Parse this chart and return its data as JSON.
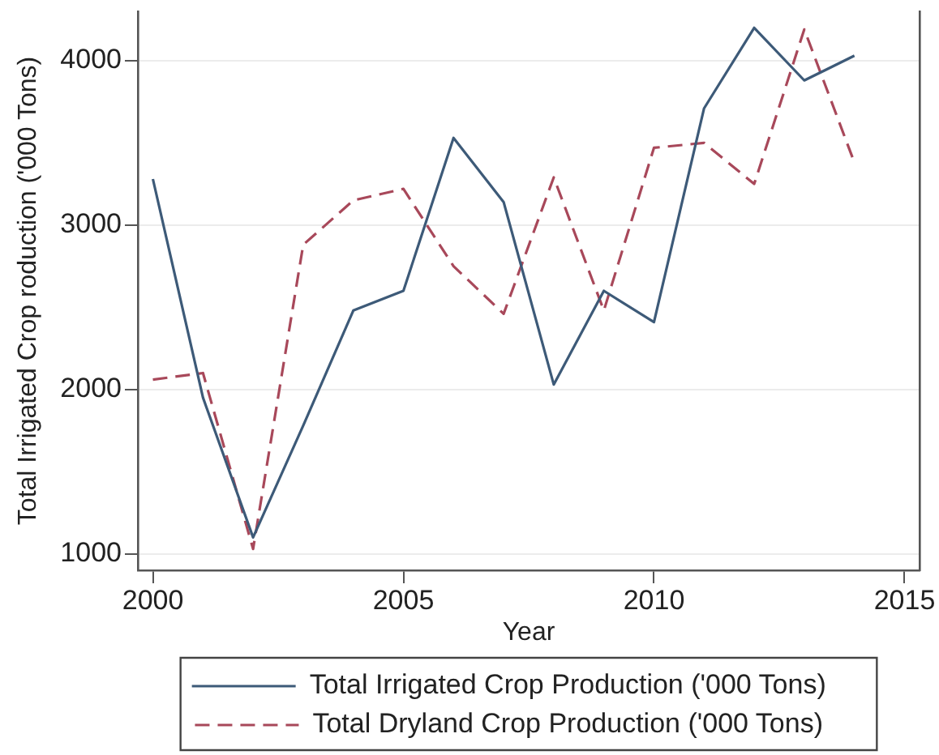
{
  "chart_data": {
    "type": "line",
    "xlabel": "Year",
    "ylabel": "Total Irrigated Crop roduction ('000 Tons)",
    "x": [
      2000,
      2001,
      2002,
      2003,
      2004,
      2005,
      2006,
      2007,
      2008,
      2009,
      2010,
      2011,
      2012,
      2013,
      2014
    ],
    "series": [
      {
        "name": "Total Irrigated Crop Production ('000 Tons)",
        "color": "#3d5a78",
        "line_style": "solid",
        "values": [
          3280,
          1950,
          1100,
          1780,
          2480,
          2600,
          3530,
          3140,
          2030,
          2600,
          2410,
          3710,
          4200,
          3880,
          4030
        ]
      },
      {
        "name": "Total Dryland Crop Production ('000 Tons)",
        "color": "#a8485a",
        "line_style": "dashed",
        "values": [
          2060,
          2100,
          1030,
          2880,
          3150,
          3220,
          2750,
          2460,
          3290,
          2480,
          3470,
          3500,
          3250,
          4190,
          3380
        ]
      }
    ],
    "xlim": [
      1999.7,
      2015.3
    ],
    "ylim": [
      900,
      4300
    ],
    "xticks": [
      2000,
      2005,
      2010,
      2015
    ],
    "yticks": [
      1000,
      2000,
      3000,
      4000
    ],
    "grid": "y",
    "legend": "bottom",
    "marker": "none"
  }
}
